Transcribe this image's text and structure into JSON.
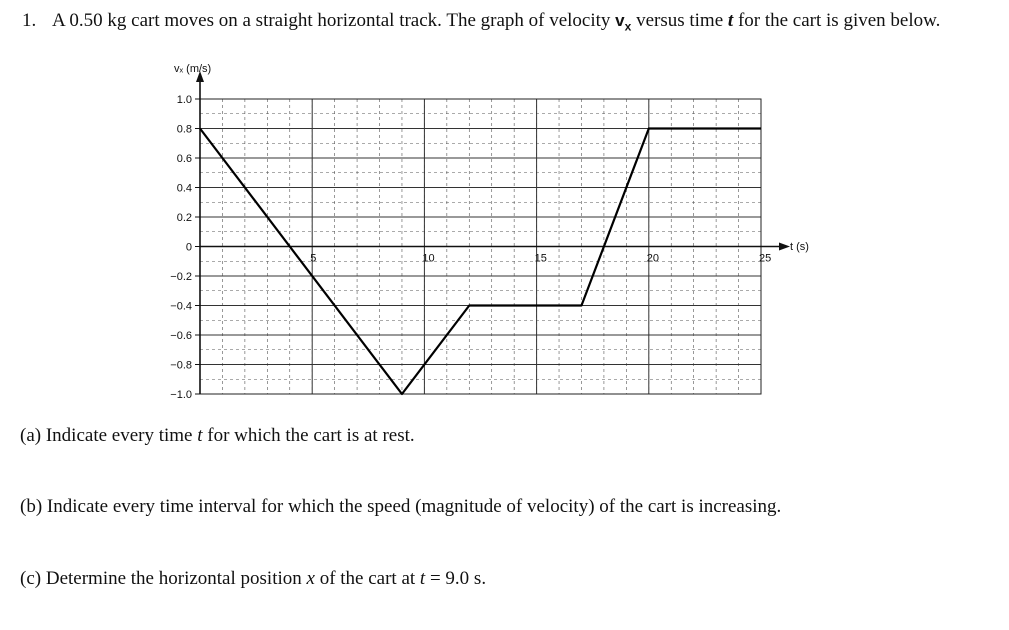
{
  "question": {
    "number": "1.",
    "text_1": "A 0.50 kg cart moves on a straight horizontal track. The graph of velocity ",
    "vx_symbol": "v",
    "vx_sub": "x",
    "text_2": " versus time ",
    "t_symbol": "t",
    "text_3": " for the cart is given below."
  },
  "chart_data": {
    "type": "line",
    "ylabel": "vₓ (m/s)",
    "xlabel": "t (s)",
    "xlim": [
      0,
      25
    ],
    "ylim": [
      -1.0,
      1.0
    ],
    "x_ticks": [
      5,
      10,
      15,
      20,
      25
    ],
    "x_tick_labels": [
      "5",
      "10",
      "15",
      "20",
      "25"
    ],
    "y_ticks": [
      1.0,
      0.8,
      0.6,
      0.4,
      0.2,
      0,
      -0.2,
      -0.4,
      -0.6,
      -0.8,
      -1.0
    ],
    "y_tick_labels": [
      "1.0",
      "0.8",
      "0.6",
      "0.4",
      "0.2",
      "0",
      "−0.2",
      "−0.4",
      "−0.6",
      "−0.8",
      "−1.0"
    ],
    "grid": true,
    "series": [
      {
        "x": [
          0,
          9,
          12,
          17,
          20,
          25
        ],
        "y": [
          0.8,
          -1.0,
          -0.4,
          -0.4,
          0.8,
          0.8
        ]
      }
    ]
  },
  "parts": {
    "a_label": "(a)",
    "a_text_1": "Indicate every time ",
    "a_var": "t",
    "a_text_2": " for which the cart is at rest.",
    "b_label": "(b)",
    "b_text": "Indicate every time interval for which the speed (magnitude of velocity) of the cart is increasing.",
    "c_label": "(c)",
    "c_text_1": "Determine the horizontal position ",
    "c_var_x": "x",
    "c_text_2": " of the cart at ",
    "c_var_t": "t",
    "c_text_3": " = 9.0 s."
  }
}
